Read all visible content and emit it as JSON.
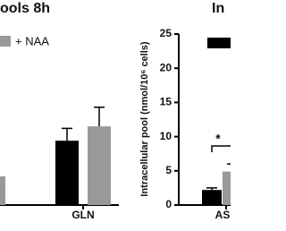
{
  "chart_data": [
    {
      "type": "bar",
      "title": "ools 8h",
      "categories": [
        null,
        "GLN"
      ],
      "series": [
        {
          "color": "#000000",
          "values": [
            null,
            9.4
          ],
          "errors": [
            null,
            1.8
          ]
        },
        {
          "name": "+ NAA",
          "color": "#999999",
          "values": [
            4.2,
            11.5
          ],
          "errors": [
            null,
            2.8
          ]
        }
      ],
      "ylim": [
        0,
        25
      ]
    },
    {
      "type": "bar",
      "title": "In",
      "y_label": "Intracellular pool (nmol/10⁶ cells)",
      "categories": [
        "ASP"
      ],
      "series": [
        {
          "color": "#000000",
          "values": [
            2.2
          ],
          "errors": [
            0.3
          ]
        },
        {
          "color": "#999999",
          "values": [
            4.9
          ],
          "errors": [
            1.1
          ]
        }
      ],
      "annotation": "*",
      "ylim": [
        0,
        25
      ],
      "yticks": [
        0,
        5,
        10,
        15,
        20,
        25
      ]
    }
  ]
}
